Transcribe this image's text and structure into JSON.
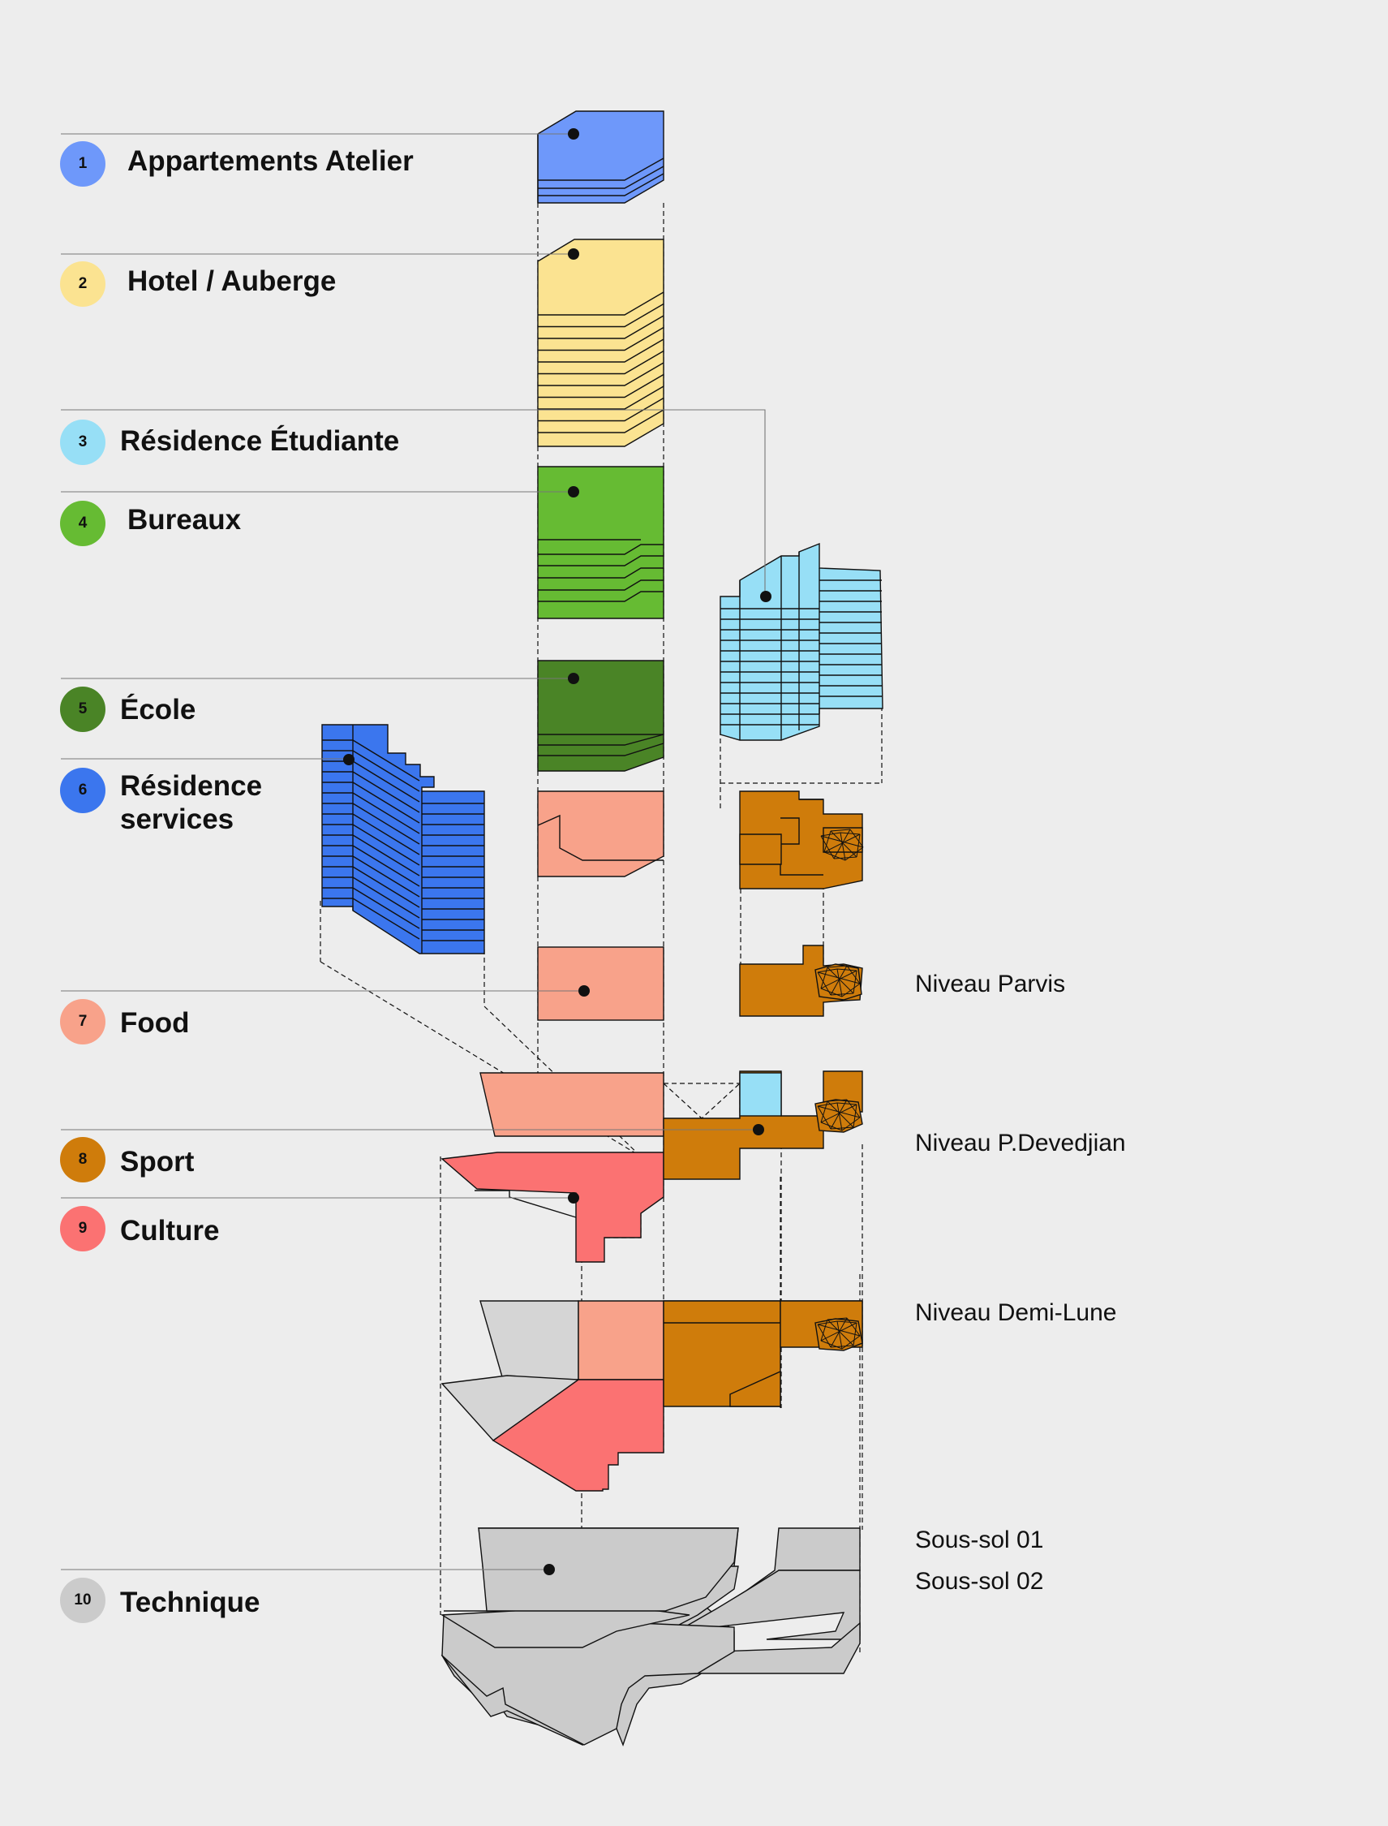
{
  "colors": {
    "appartements": "#6e98fa",
    "hotel": "#fbe391",
    "residence_etudiante": "#97dff6",
    "bureaux": "#66bb33",
    "ecole": "#4a8426",
    "residence_services": "#3b76ee",
    "food": "#f8a28a",
    "sport": "#cf7c0b",
    "culture": "#fb7272",
    "technique": "#cbcbcb",
    "background": "#ededed",
    "stroke": "#111111"
  },
  "legend": [
    {
      "num": "1",
      "label": "Appartements Atelier"
    },
    {
      "num": "2",
      "label": "Hotel / Auberge"
    },
    {
      "num": "3",
      "label": "Résidence Étudiante"
    },
    {
      "num": "4",
      "label": "Bureaux"
    },
    {
      "num": "5",
      "label": "École"
    },
    {
      "num": "6",
      "label": "Résidence",
      "label2": "services"
    },
    {
      "num": "7",
      "label": "Food"
    },
    {
      "num": "8",
      "label": "Sport"
    },
    {
      "num": "9",
      "label": "Culture"
    },
    {
      "num": "10",
      "label": "Technique"
    }
  ],
  "levels": {
    "parvis": "Niveau Parvis",
    "devedjian": "Niveau P.Devedjian",
    "demi_lune": "Niveau Demi-Lune",
    "sous_sol_01": "Sous-sol 01",
    "sous_sol_02": "Sous-sol 02"
  }
}
